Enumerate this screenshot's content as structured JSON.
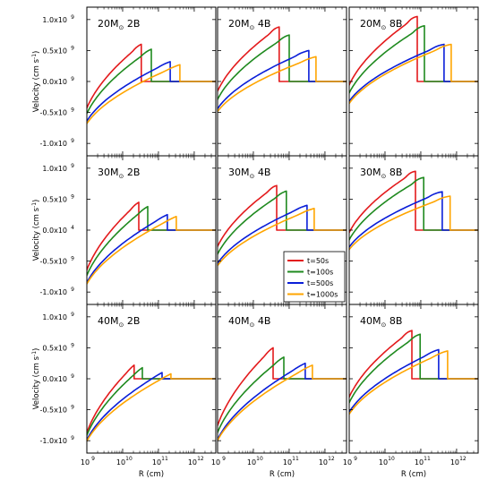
{
  "ylabel": "Velocity (cm s",
  "ylabel_sup": "-1",
  "ylabel_close": ")",
  "xlabel": "R (cm)",
  "ytick_labels": [
    "1.0x10",
    "0.5x10",
    "0.0x10",
    "-0.5x10",
    "-1.0x10"
  ],
  "ytick_exps": [
    "9",
    "9",
    "9",
    "9",
    "9"
  ],
  "ytick_exps_row2": [
    "9",
    "9",
    "4",
    "9",
    "9"
  ],
  "xtick_labels": [
    "10",
    "10",
    "10",
    "10"
  ],
  "xtick_exps": [
    "9",
    "10",
    "11",
    "12"
  ],
  "colors": {
    "t50": "#e31a1c",
    "t100": "#1f8a1f",
    "t500": "#0a1ed8",
    "t1000": "#ffa500"
  },
  "legend": [
    "t=50s",
    "t=100s",
    "t=500s",
    "t=1000s"
  ],
  "chart_data": {
    "type": "line",
    "x_scale": "log",
    "xlim": [
      1000000000.0,
      4000000000000.0
    ],
    "ylim": [
      -1200000000.0,
      1200000000.0
    ],
    "legend_placement": "lower-right of middle panel",
    "panels": [
      {
        "title": "20M",
        "sub": "⊙",
        "suffix": " 2B",
        "curves": [
          {
            "name": "t=50s",
            "color": "#e31a1c",
            "start": -800000000.0,
            "peak_x": 10.52,
            "peak_y": 600000000.0
          },
          {
            "name": "t=100s",
            "color": "#1f8a1f",
            "start": -850000000.0,
            "peak_x": 10.8,
            "peak_y": 520000000.0
          },
          {
            "name": "t=500s",
            "color": "#0a1ed8",
            "start": -900000000.0,
            "peak_x": 11.33,
            "peak_y": 320000000.0
          },
          {
            "name": "t=1000s",
            "color": "#ffa500",
            "start": -920000000.0,
            "peak_x": 11.6,
            "peak_y": 270000000.0
          }
        ]
      },
      {
        "title": "20M",
        "sub": "⊙",
        "suffix": " 4B",
        "curves": [
          {
            "name": "t=50s",
            "color": "#e31a1c",
            "start": -500000000.0,
            "peak_x": 10.72,
            "peak_y": 880000000.0
          },
          {
            "name": "t=100s",
            "color": "#1f8a1f",
            "start": -600000000.0,
            "peak_x": 11.0,
            "peak_y": 750000000.0
          },
          {
            "name": "t=500s",
            "color": "#0a1ed8",
            "start": -680000000.0,
            "peak_x": 11.55,
            "peak_y": 500000000.0
          },
          {
            "name": "t=1000s",
            "color": "#ffa500",
            "start": -700000000.0,
            "peak_x": 11.75,
            "peak_y": 400000000.0
          }
        ]
      },
      {
        "title": "20M",
        "sub": "⊙",
        "suffix": " 8B",
        "curves": [
          {
            "name": "t=50s",
            "color": "#e31a1c",
            "start": -400000000.0,
            "peak_x": 10.9,
            "peak_y": 1050000000.0
          },
          {
            "name": "t=100s",
            "color": "#1f8a1f",
            "start": -500000000.0,
            "peak_x": 11.1,
            "peak_y": 900000000.0
          },
          {
            "name": "t=500s",
            "color": "#0a1ed8",
            "start": -550000000.0,
            "peak_x": 11.65,
            "peak_y": 600000000.0
          },
          {
            "name": "t=1000s",
            "color": "#ffa500",
            "start": -580000000.0,
            "peak_x": 11.85,
            "peak_y": 600000000.0
          }
        ]
      },
      {
        "title": "30M",
        "sub": "⊙",
        "suffix": " 2B",
        "curves": [
          {
            "name": "t=50s",
            "color": "#e31a1c",
            "start": -1050000000.0,
            "peak_x": 10.45,
            "peak_y": 450000000.0
          },
          {
            "name": "t=100s",
            "color": "#1f8a1f",
            "start": -1100000000.0,
            "peak_x": 10.7,
            "peak_y": 380000000.0
          },
          {
            "name": "t=500s",
            "color": "#0a1ed8",
            "start": -1150000000.0,
            "peak_x": 11.25,
            "peak_y": 250000000.0
          },
          {
            "name": "t=1000s",
            "color": "#ffa500",
            "start": -1150000000.0,
            "peak_x": 11.5,
            "peak_y": 220000000.0
          }
        ]
      },
      {
        "title": "30M",
        "sub": "⊙",
        "suffix": " 4B",
        "curves": [
          {
            "name": "t=50s",
            "color": "#e31a1c",
            "start": -600000000.0,
            "peak_x": 10.65,
            "peak_y": 720000000.0
          },
          {
            "name": "t=100s",
            "color": "#1f8a1f",
            "start": -700000000.0,
            "peak_x": 10.92,
            "peak_y": 630000000.0
          },
          {
            "name": "t=500s",
            "color": "#0a1ed8",
            "start": -780000000.0,
            "peak_x": 11.5,
            "peak_y": 400000000.0
          },
          {
            "name": "t=1000s",
            "color": "#ffa500",
            "start": -800000000.0,
            "peak_x": 11.7,
            "peak_y": 350000000.0
          }
        ]
      },
      {
        "title": "30M",
        "sub": "⊙",
        "suffix": " 8B",
        "curves": [
          {
            "name": "t=50s",
            "color": "#e31a1c",
            "start": -350000000.0,
            "peak_x": 10.85,
            "peak_y": 950000000.0
          },
          {
            "name": "t=100s",
            "color": "#1f8a1f",
            "start": -450000000.0,
            "peak_x": 11.08,
            "peak_y": 850000000.0
          },
          {
            "name": "t=500s",
            "color": "#0a1ed8",
            "start": -500000000.0,
            "peak_x": 11.6,
            "peak_y": 620000000.0
          },
          {
            "name": "t=1000s",
            "color": "#ffa500",
            "start": -520000000.0,
            "peak_x": 11.82,
            "peak_y": 550000000.0
          }
        ]
      },
      {
        "title": "40M",
        "sub": "⊙",
        "suffix": " 2B",
        "curves": [
          {
            "name": "t=50s",
            "color": "#e31a1c",
            "start": -1300000000.0,
            "peak_x": 10.32,
            "peak_y": 220000000.0
          },
          {
            "name": "t=100s",
            "color": "#1f8a1f",
            "start": -1300000000.0,
            "peak_x": 10.55,
            "peak_y": 180000000.0
          },
          {
            "name": "t=500s",
            "color": "#0a1ed8",
            "start": -1300000000.0,
            "peak_x": 11.1,
            "peak_y": 100000000.0
          },
          {
            "name": "t=1000s",
            "color": "#ffa500",
            "start": -1300000000.0,
            "peak_x": 11.35,
            "peak_y": 80000000.0
          }
        ]
      },
      {
        "title": "40M",
        "sub": "⊙",
        "suffix": " 4B",
        "curves": [
          {
            "name": "t=50s",
            "color": "#e31a1c",
            "start": -1200000000.0,
            "peak_x": 10.55,
            "peak_y": 500000000.0
          },
          {
            "name": "t=100s",
            "color": "#1f8a1f",
            "start": -1250000000.0,
            "peak_x": 10.85,
            "peak_y": 350000000.0
          },
          {
            "name": "t=500s",
            "color": "#0a1ed8",
            "start": -1300000000.0,
            "peak_x": 11.45,
            "peak_y": 250000000.0
          },
          {
            "name": "t=1000s",
            "color": "#ffa500",
            "start": -1300000000.0,
            "peak_x": 11.65,
            "peak_y": 220000000.0
          }
        ]
      },
      {
        "title": "40M",
        "sub": "⊙",
        "suffix": " 8B",
        "curves": [
          {
            "name": "t=50s",
            "color": "#e31a1c",
            "start": -650000000.0,
            "peak_x": 10.75,
            "peak_y": 780000000.0
          },
          {
            "name": "t=100s",
            "color": "#1f8a1f",
            "start": -720000000.0,
            "peak_x": 10.98,
            "peak_y": 720000000.0
          },
          {
            "name": "t=500s",
            "color": "#0a1ed8",
            "start": -800000000.0,
            "peak_x": 11.5,
            "peak_y": 470000000.0
          },
          {
            "name": "t=1000s",
            "color": "#ffa500",
            "start": -820000000.0,
            "peak_x": 11.75,
            "peak_y": 450000000.0
          }
        ]
      }
    ]
  }
}
